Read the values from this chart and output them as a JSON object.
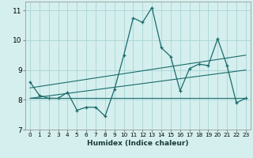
{
  "xlabel": "Humidex (Indice chaleur)",
  "background_color": "#d4efee",
  "grid_color": "#aad4d4",
  "line_color": "#1a6b6b",
  "xlim": [
    -0.5,
    23.5
  ],
  "ylim": [
    7,
    11.3
  ],
  "yticks": [
    7,
    8,
    9,
    10,
    11
  ],
  "xticks": [
    0,
    1,
    2,
    3,
    4,
    5,
    6,
    7,
    8,
    9,
    10,
    11,
    12,
    13,
    14,
    15,
    16,
    17,
    18,
    19,
    20,
    21,
    22,
    23
  ],
  "main_x": [
    0,
    1,
    2,
    3,
    4,
    5,
    6,
    7,
    8,
    9,
    10,
    11,
    12,
    13,
    14,
    15,
    16,
    17,
    18,
    19,
    20,
    21,
    22,
    23
  ],
  "main_y": [
    8.6,
    8.15,
    8.05,
    8.05,
    8.25,
    7.65,
    7.75,
    7.75,
    7.45,
    8.35,
    9.5,
    10.75,
    10.6,
    11.1,
    9.75,
    9.45,
    8.3,
    9.05,
    9.2,
    9.15,
    10.05,
    9.15,
    7.9,
    8.05
  ],
  "line1_x": [
    0,
    23
  ],
  "line1_y": [
    8.05,
    8.05
  ],
  "line2_x": [
    0,
    23
  ],
  "line2_y": [
    8.05,
    9.0
  ],
  "line3_x": [
    0,
    23
  ],
  "line3_y": [
    8.4,
    9.5
  ]
}
